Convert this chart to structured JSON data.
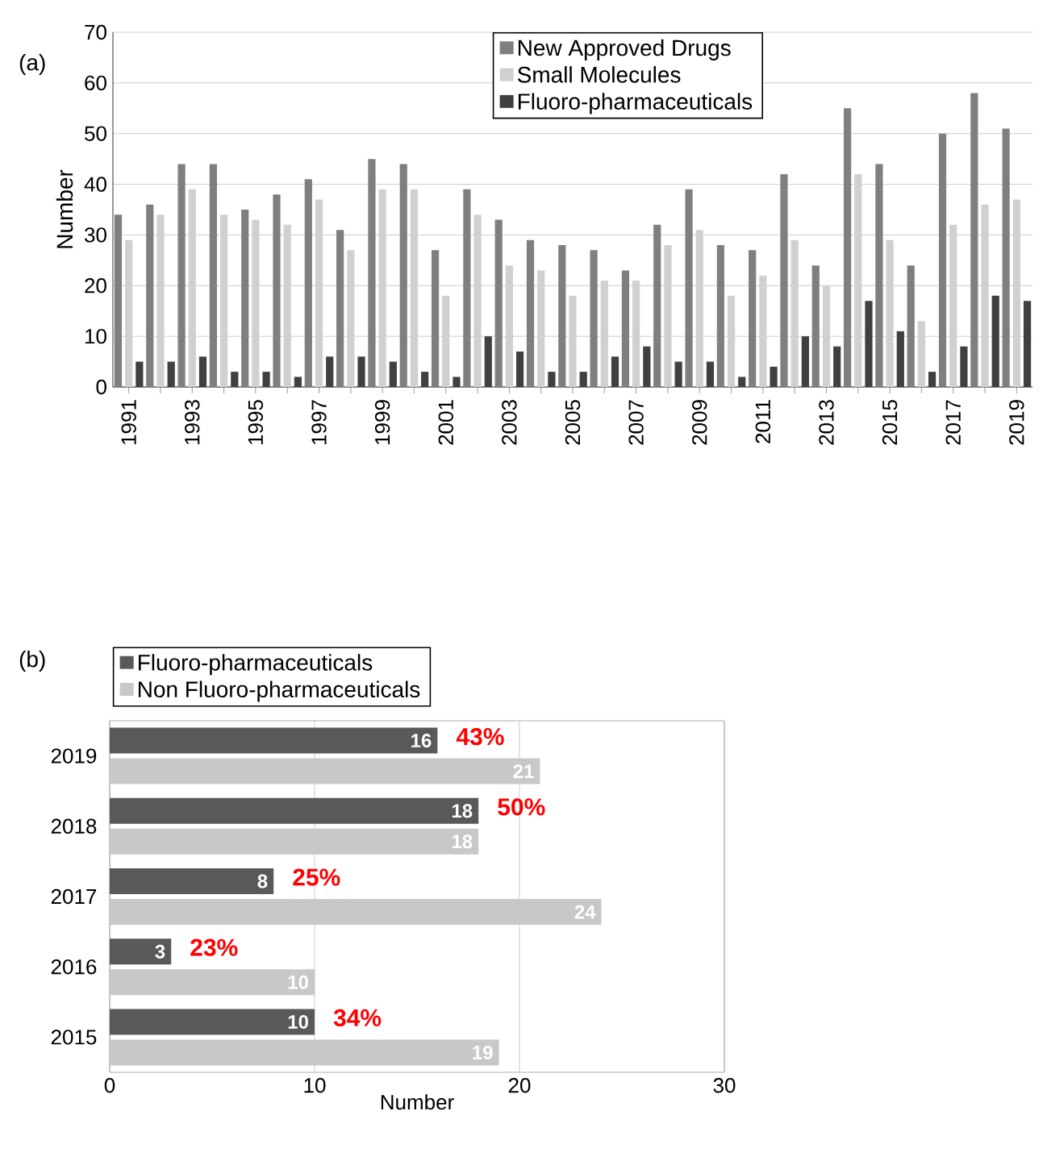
{
  "chart_data": [
    {
      "type": "bar",
      "title": "(a)",
      "ylabel": "Number",
      "categories": [
        "1991",
        null,
        "1993",
        null,
        "1995",
        null,
        "1997",
        null,
        "1999",
        null,
        "2001",
        null,
        "2003",
        null,
        "2005",
        null,
        "2007",
        null,
        "2009",
        null,
        "2011",
        null,
        "2013",
        null,
        "2015",
        null,
        "2017",
        null,
        "2019"
      ],
      "series": [
        {
          "name": "New Approved Drugs",
          "color": "#7f7f7f",
          "values": [
            34,
            36,
            44,
            44,
            35,
            38,
            41,
            31,
            45,
            44,
            27,
            39,
            33,
            29,
            28,
            27,
            23,
            32,
            39,
            28,
            27,
            42,
            24,
            55,
            44,
            24,
            50,
            58,
            51
          ]
        },
        {
          "name": "Small Molecules",
          "color": "#d0d0d0",
          "values": [
            29,
            34,
            39,
            34,
            33,
            32,
            37,
            27,
            39,
            39,
            18,
            34,
            24,
            23,
            18,
            21,
            21,
            28,
            31,
            18,
            22,
            29,
            20,
            42,
            29,
            13,
            32,
            36,
            37
          ]
        },
        {
          "name": "Fluoro-pharmaceuticals",
          "color": "#404040",
          "values": [
            5,
            5,
            6,
            3,
            3,
            2,
            6,
            6,
            5,
            3,
            2,
            10,
            7,
            3,
            3,
            6,
            8,
            5,
            5,
            2,
            4,
            10,
            8,
            17,
            11,
            3,
            8,
            18,
            17
          ]
        }
      ],
      "ylim": [
        0,
        70
      ],
      "yticks": [
        0,
        10,
        20,
        30,
        40,
        50,
        60,
        70
      ],
      "grid": "y",
      "legend": "top"
    },
    {
      "type": "bar",
      "orientation": "horizontal",
      "title": "(b)",
      "xlabel": "Number",
      "categories": [
        "2019",
        "2018",
        "2017",
        "2016",
        "2015"
      ],
      "series": [
        {
          "name": "Fluoro-pharmaceuticals",
          "color": "#595959",
          "values": [
            16,
            18,
            8,
            3,
            10
          ]
        },
        {
          "name": "Non Fluoro-pharmaceuticals",
          "color": "#c8c8c8",
          "values": [
            21,
            18,
            24,
            10,
            19
          ]
        }
      ],
      "xlim": [
        0,
        30
      ],
      "xticks": [
        0,
        10,
        20,
        30
      ],
      "grid": "x",
      "legend": "top",
      "data_labels": true,
      "annotations": [
        {
          "text": "43%",
          "x": 16,
          "y": "2019"
        },
        {
          "text": "50%",
          "x": 18,
          "y": "2018"
        },
        {
          "text": "25%",
          "x": 8,
          "y": "2017"
        },
        {
          "text": "23%",
          "x": 3,
          "y": "2016"
        },
        {
          "text": "34%",
          "x": 10,
          "y": "2015"
        }
      ]
    }
  ]
}
